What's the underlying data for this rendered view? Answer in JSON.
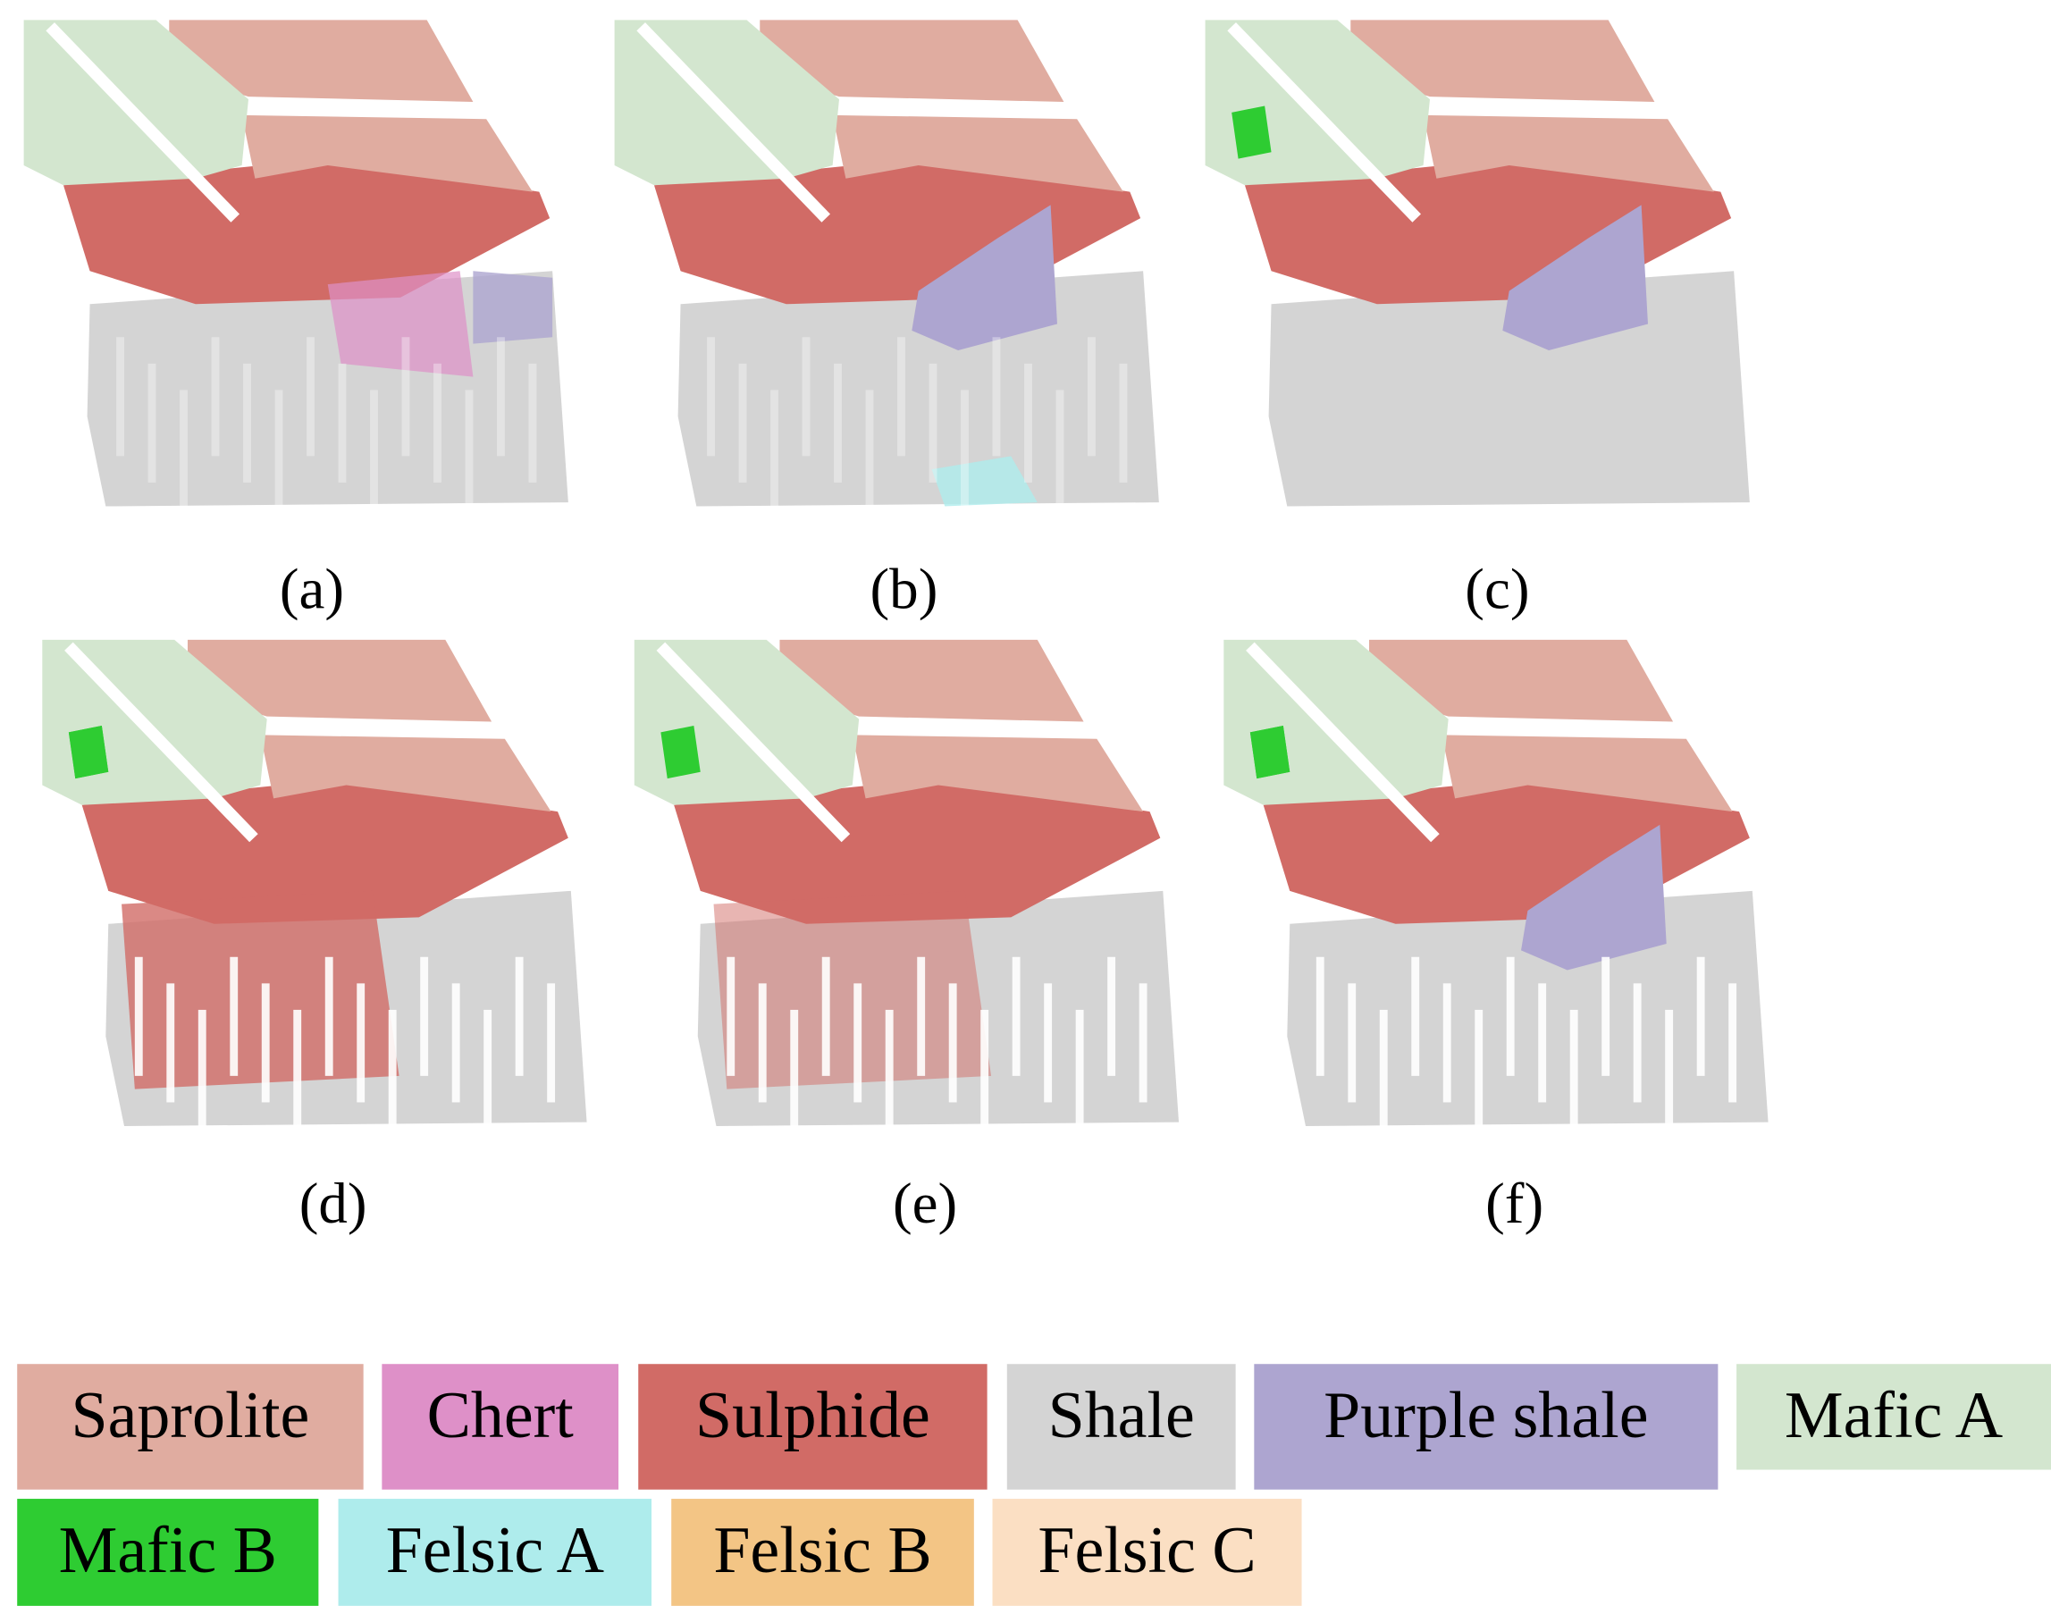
{
  "panels": [
    {
      "label": "(a)"
    },
    {
      "label": "(b)"
    },
    {
      "label": "(c)"
    },
    {
      "label": "(d)"
    },
    {
      "label": "(e)"
    },
    {
      "label": "(f)"
    }
  ],
  "legend": [
    {
      "name": "Saprolite",
      "color": "#e0aca0"
    },
    {
      "name": "Chert",
      "color": "#de90c8"
    },
    {
      "name": "Sulphide",
      "color": "#d16b66"
    },
    {
      "name": "Shale",
      "color": "#d4d4d4"
    },
    {
      "name": "Purple shale",
      "color": "#ada5d0"
    },
    {
      "name": "Mafic A",
      "color": "#d3e6cf"
    },
    {
      "name": "Mafic B",
      "color": "#2ecc32"
    },
    {
      "name": "Felsic A",
      "color": "#aeecec"
    },
    {
      "name": "Felsic B",
      "color": "#f3c585"
    },
    {
      "name": "Felsic C",
      "color": "#fbdfc3"
    }
  ]
}
